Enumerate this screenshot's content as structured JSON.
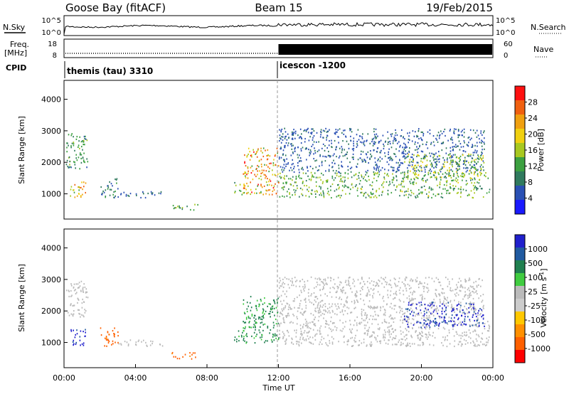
{
  "header": {
    "left": "Goose Bay (fitACF)",
    "center": "Beam 15",
    "right": "19/Feb/2015"
  },
  "left_labels": {
    "nsky": "N.Sky",
    "freq_line1": "Freq.",
    "freq_line2": "[MHz]",
    "cpid": "CPID"
  },
  "right_labels": {
    "nsearch": "N.Search",
    "nave": "Nave"
  },
  "noise_axis": {
    "left_ticks": [
      "10^5",
      "10^0"
    ],
    "right_ticks": [
      "10^5",
      "10^0"
    ]
  },
  "freq_axis": {
    "left_ticks": [
      "18",
      "8"
    ],
    "right_ticks": [
      "60",
      "0"
    ]
  },
  "cpid_segments": [
    {
      "label": "themis (tau) 3310",
      "start_hour": 0
    },
    {
      "label": "icescon -1200",
      "start_hour": 12
    }
  ],
  "colors": {
    "power_scale": [
      "#1a1aff",
      "#2a50b4",
      "#307a5e",
      "#3ca040",
      "#a8c820",
      "#f0d010",
      "#f0a010",
      "#f06010",
      "#ff1010"
    ],
    "velocity_scale": [
      "#ff0000",
      "#ff6000",
      "#ff9000",
      "#ffc800",
      "#cccccc",
      "#bbbbbb",
      "#40cc40",
      "#208050",
      "#205aa0",
      "#2020cc"
    ]
  },
  "chart_data": [
    {
      "type": "heatmap",
      "name_field": "power",
      "ylabel": "Slant Range [km]",
      "ylim": [
        200,
        4600
      ],
      "yticks": [
        "1000",
        "2000",
        "3000",
        "4000"
      ],
      "xlim": [
        0,
        24
      ],
      "colorbar_label": "Power [dB]",
      "colorbar_ticks": [
        "4",
        "8",
        "12",
        "16",
        "20",
        "24",
        "28"
      ],
      "colorbar_range": [
        0,
        30
      ],
      "regions": [
        {
          "t0": 0.1,
          "t1": 1.3,
          "r0": 1800,
          "r1": 3000,
          "value": 10
        },
        {
          "t0": 0.3,
          "t1": 1.2,
          "r0": 900,
          "r1": 1450,
          "value": 18
        },
        {
          "t0": 2.0,
          "t1": 3.0,
          "r0": 900,
          "r1": 1500,
          "value": 8
        },
        {
          "t0": 3.0,
          "t1": 5.5,
          "r0": 900,
          "r1": 1100,
          "value": 6
        },
        {
          "t0": 6.0,
          "t1": 7.5,
          "r0": 500,
          "r1": 700,
          "value": 12
        },
        {
          "t0": 9.5,
          "t1": 10.3,
          "r0": 1000,
          "r1": 1400,
          "value": 14
        },
        {
          "t0": 10.0,
          "t1": 12.0,
          "r0": 1000,
          "r1": 2500,
          "value": 20
        },
        {
          "t0": 12.0,
          "t1": 23.8,
          "r0": 900,
          "r1": 1700,
          "value": 12
        },
        {
          "t0": 12.0,
          "t1": 23.5,
          "r0": 1700,
          "r1": 3100,
          "value": 6
        },
        {
          "t0": 19.0,
          "t1": 23.5,
          "r0": 1500,
          "r1": 2300,
          "value": 14
        }
      ]
    },
    {
      "type": "heatmap",
      "name_field": "velocity",
      "ylabel": "Slant Range [km]",
      "ylim": [
        200,
        4600
      ],
      "yticks": [
        "1000",
        "2000",
        "3000",
        "4000"
      ],
      "xlim": [
        0,
        24
      ],
      "xticks": [
        "00:00",
        "04:00",
        "08:00",
        "12:00",
        "16:00",
        "20:00",
        "00:00"
      ],
      "xlabel": "Time UT",
      "colorbar_label": "Velocity [m s^-1]",
      "colorbar_ticks": [
        "1000",
        "500",
        "100",
        "25",
        "-25",
        "-100",
        "-500",
        "-1000"
      ],
      "regions": [
        {
          "t0": 0.1,
          "t1": 1.3,
          "r0": 1800,
          "r1": 3000,
          "value": 0
        },
        {
          "t0": 0.3,
          "t1": 1.2,
          "r0": 900,
          "r1": 1450,
          "value": 600
        },
        {
          "t0": 2.0,
          "t1": 3.0,
          "r0": 900,
          "r1": 1500,
          "value": -150
        },
        {
          "t0": 3.0,
          "t1": 5.5,
          "r0": 900,
          "r1": 1100,
          "value": 0
        },
        {
          "t0": 6.0,
          "t1": 7.5,
          "r0": 500,
          "r1": 700,
          "value": -150
        },
        {
          "t0": 9.5,
          "t1": 10.3,
          "r0": 1000,
          "r1": 1400,
          "value": 60
        },
        {
          "t0": 10.0,
          "t1": 12.0,
          "r0": 1000,
          "r1": 2500,
          "value": 60
        },
        {
          "t0": 12.0,
          "t1": 23.8,
          "r0": 900,
          "r1": 1700,
          "value": 0
        },
        {
          "t0": 12.0,
          "t1": 23.5,
          "r0": 1700,
          "r1": 3100,
          "value": 0
        },
        {
          "t0": 19.0,
          "t1": 23.5,
          "r0": 1500,
          "r1": 2300,
          "value": 600
        }
      ]
    }
  ]
}
